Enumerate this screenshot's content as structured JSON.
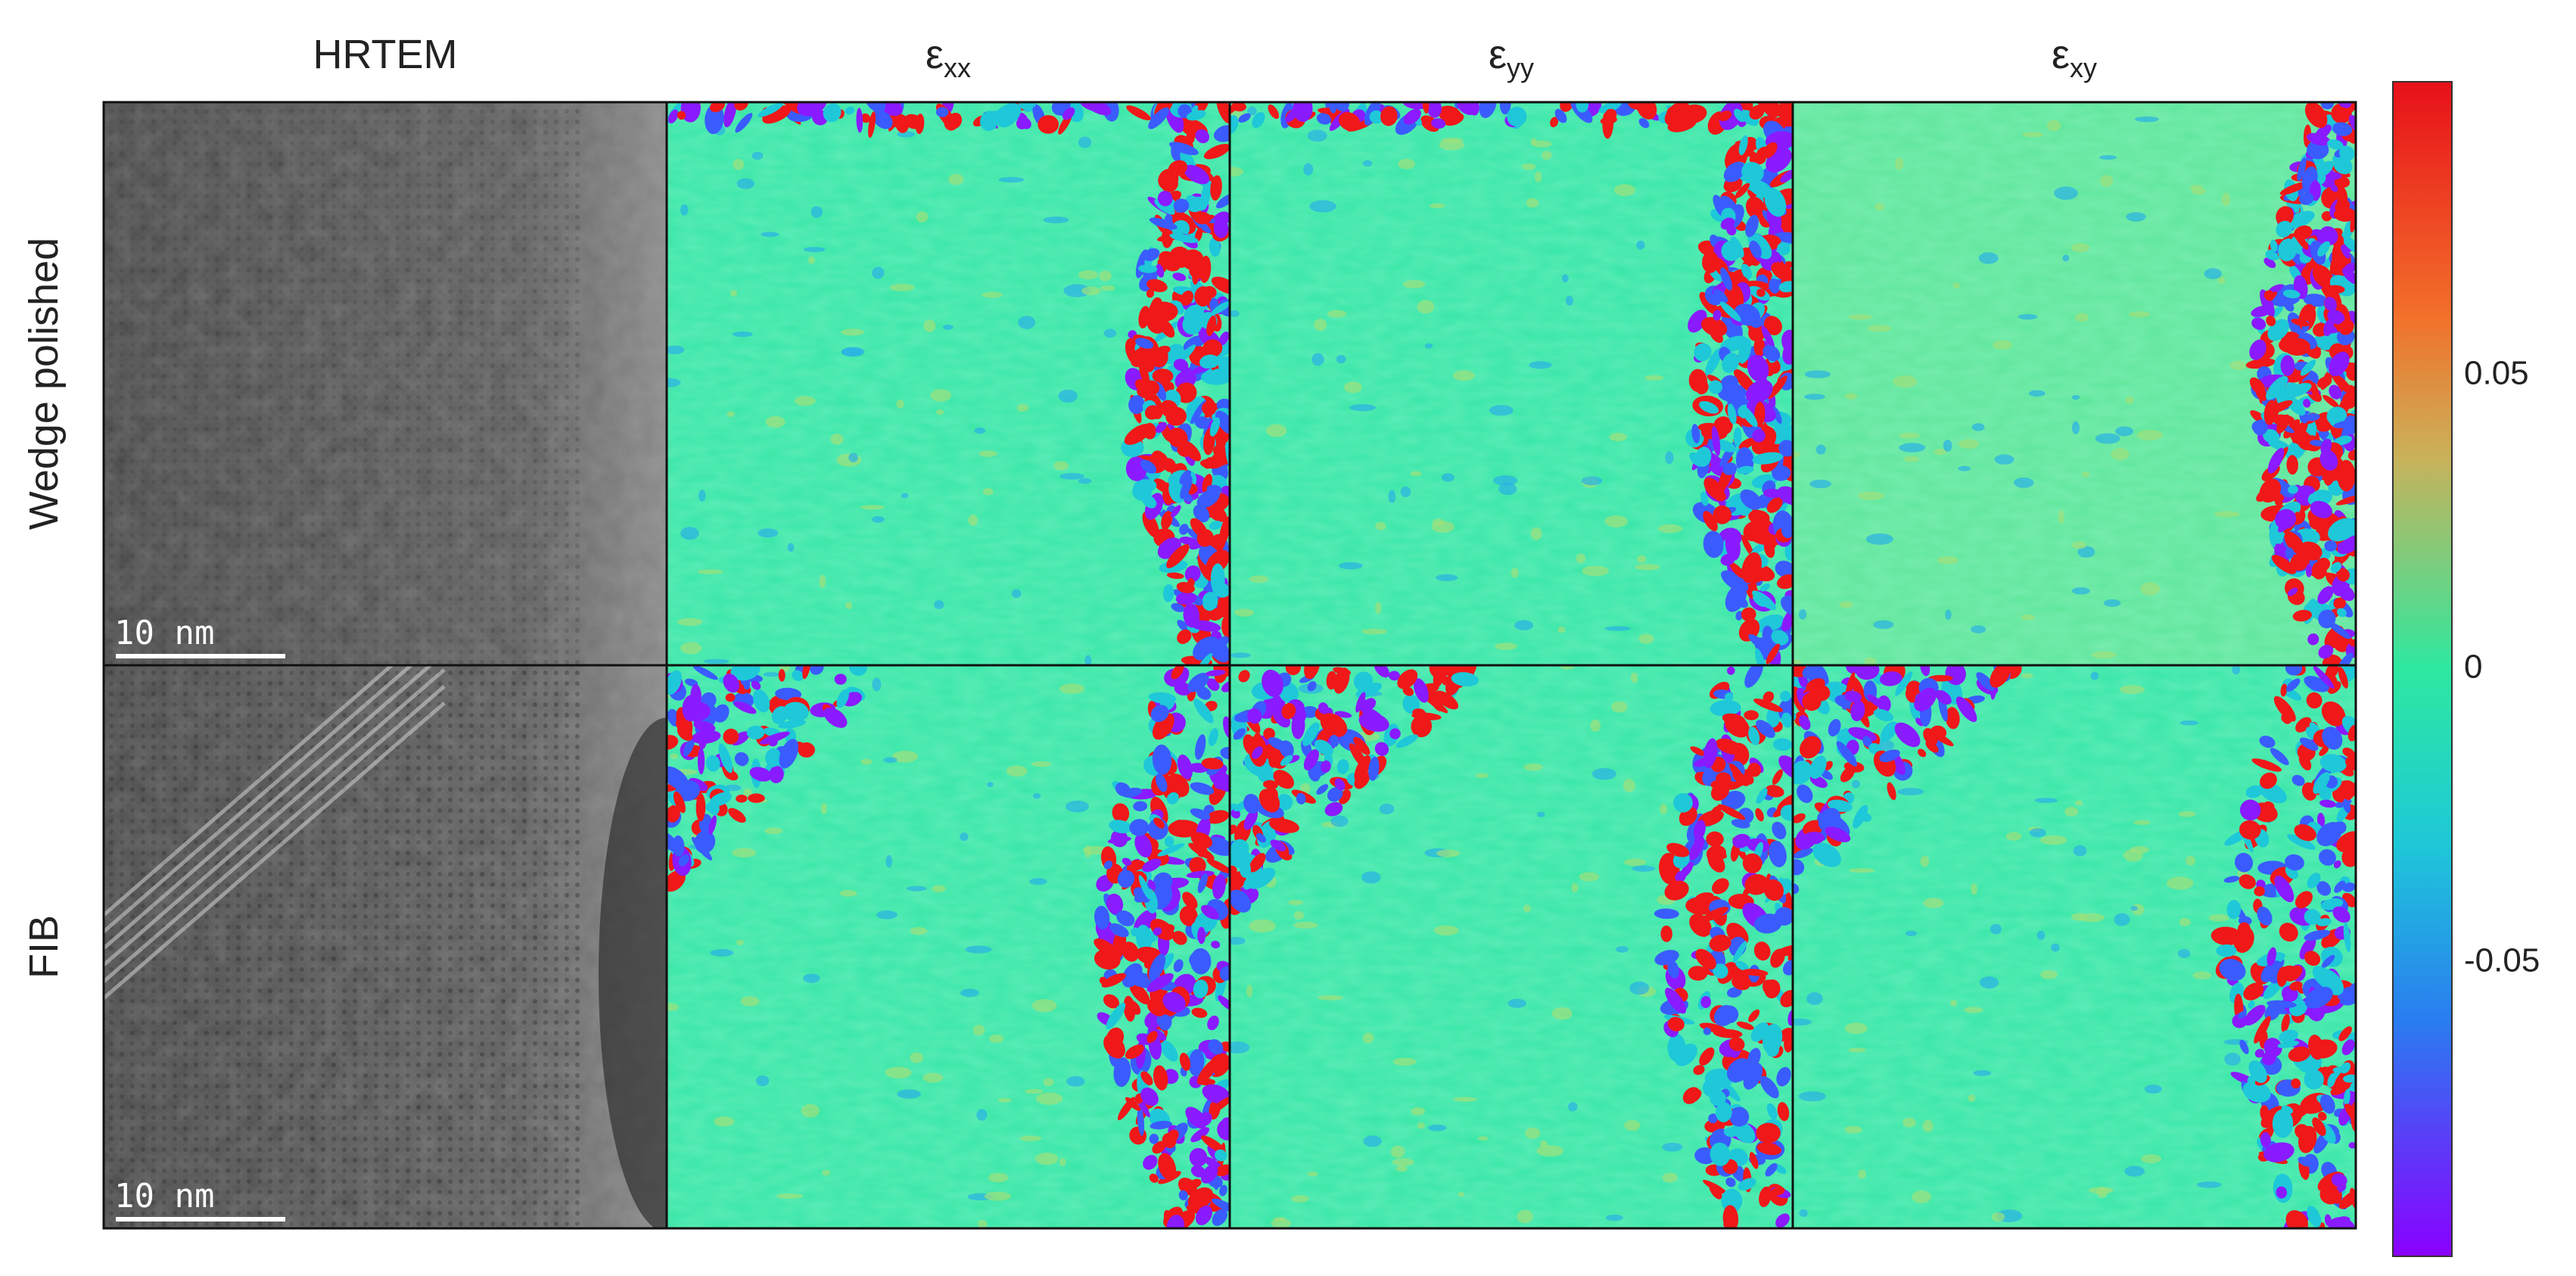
{
  "columns": [
    {
      "label": "HRTEM"
    },
    {
      "label": "ε",
      "subscript": "xx"
    },
    {
      "label": "ε",
      "subscript": "yy"
    },
    {
      "label": "ε",
      "subscript": "xy"
    }
  ],
  "rows": [
    "Wedge polished",
    "FIB"
  ],
  "scale_bars": [
    "10 nm",
    "10 nm"
  ],
  "colorbar": {
    "lim": [
      -0.1,
      0.1
    ],
    "ticks": [
      -0.05,
      0,
      0.05
    ]
  }
}
